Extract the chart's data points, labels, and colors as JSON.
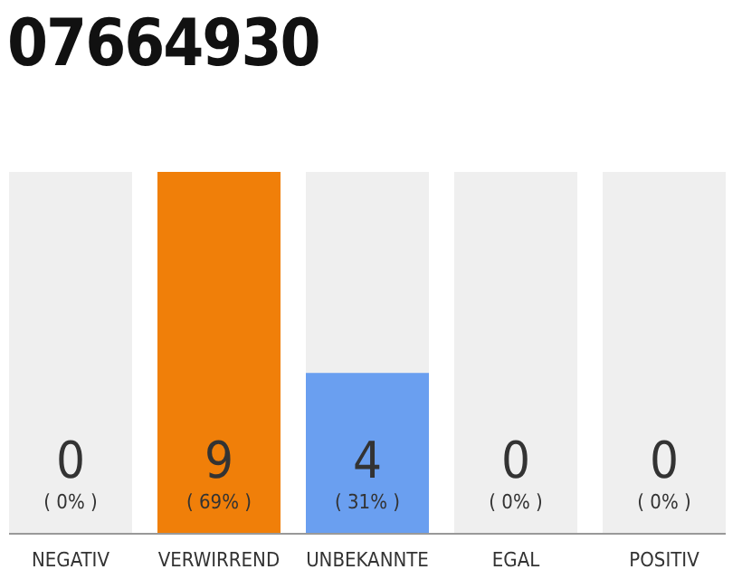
{
  "chart_data": {
    "type": "bar",
    "title": "07664930",
    "categories": [
      "NEGATIV",
      "VERWIRREND",
      "UNBEKANNTE",
      "EGAL",
      "POSITIV"
    ],
    "values": [
      0,
      9,
      4,
      0,
      0
    ],
    "colors": [
      "#f07f09",
      "#f07f09",
      "#6a9ff0",
      "#6a9ff0",
      "#6a9ff0"
    ],
    "data_labels": true,
    "bands": [
      {
        "axis": "y",
        "from": 0,
        "to": 9,
        "color": "#efefef"
      }
    ],
    "annotations": [
      "( 0% )",
      "( 69% )",
      "( 31% )",
      "( 0% )",
      "( 0% )"
    ]
  }
}
